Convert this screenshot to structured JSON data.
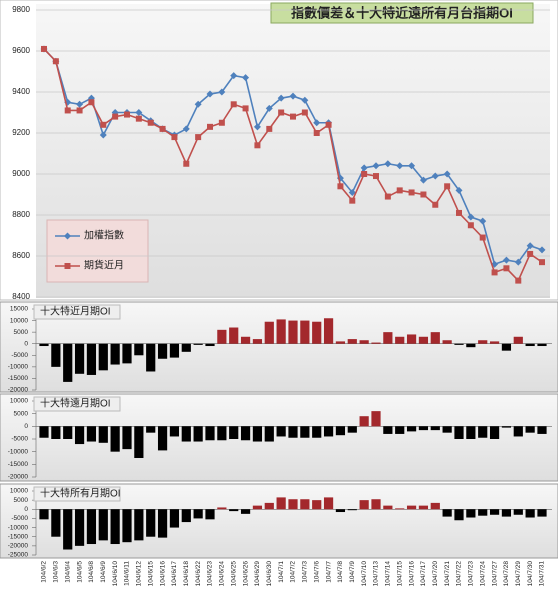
{
  "chart_data": [
    {
      "type": "line",
      "title": "指數價差＆十大特近遠所有月台指期OI",
      "ylim": [
        8400,
        9800
      ],
      "yticks": [
        8400,
        8600,
        8800,
        9000,
        9200,
        9400,
        9600,
        9800
      ],
      "grid": true,
      "series": [
        {
          "name": "加權指數",
          "color": "#4f81bd",
          "marker": "diamond",
          "values": [
            9610,
            9550,
            9350,
            9340,
            9370,
            9190,
            9300,
            9300,
            9300,
            9260,
            9220,
            9190,
            9220,
            9340,
            9390,
            9400,
            9480,
            9470,
            9230,
            9320,
            9370,
            9380,
            9360,
            9250,
            9250,
            8980,
            8910,
            9030,
            9040,
            9050,
            9040,
            9040,
            8970,
            8990,
            9000,
            8920,
            8790,
            8770,
            8560,
            8580,
            8570,
            8650,
            8630
          ]
        },
        {
          "name": "期貨近月",
          "color": "#c0504d",
          "marker": "square",
          "values": [
            9610,
            9550,
            9310,
            9310,
            9350,
            9240,
            9280,
            9290,
            9270,
            9250,
            9220,
            9180,
            9050,
            9180,
            9230,
            9250,
            9340,
            9320,
            9140,
            9220,
            9300,
            9280,
            9300,
            9200,
            9240,
            8940,
            8870,
            9000,
            8990,
            8890,
            8920,
            8910,
            8900,
            8850,
            8940,
            8810,
            8750,
            8690,
            8520,
            8540,
            8480,
            8610,
            8570
          ]
        }
      ]
    },
    {
      "type": "bar",
      "title": "十大特近月期OI",
      "ylim": [
        -20000,
        15000
      ],
      "yticks": [
        -20000,
        -15000,
        -10000,
        -5000,
        0,
        5000,
        10000,
        15000
      ],
      "positive_color": "#a3282c",
      "negative_color": "#000000",
      "values": [
        -1000,
        -10000,
        -16500,
        -13000,
        -13500,
        -11500,
        -9000,
        -8500,
        -5000,
        -12000,
        -6500,
        -6000,
        -3500,
        -500,
        -1000,
        6000,
        7000,
        3000,
        2000,
        9500,
        10500,
        10000,
        10000,
        9500,
        11000,
        1000,
        2000,
        1500,
        500,
        5000,
        3000,
        4000,
        3000,
        5000,
        1500,
        -500,
        -1500,
        1500,
        1000,
        -3000,
        3000,
        -1000,
        -1000
      ]
    },
    {
      "type": "bar",
      "title": "十大特遠月期OI",
      "ylim": [
        -20000,
        10000
      ],
      "yticks": [
        -20000,
        -15000,
        -10000,
        -5000,
        0,
        5000,
        10000
      ],
      "positive_color": "#a3282c",
      "negative_color": "#000000",
      "values": [
        -4500,
        -5000,
        -5000,
        -7000,
        -6000,
        -6500,
        -10000,
        -9000,
        -12500,
        -2500,
        -9500,
        -4000,
        -6000,
        -6000,
        -5500,
        -5500,
        -5000,
        -5500,
        -6000,
        -6000,
        -4000,
        -4500,
        -4500,
        -4500,
        -4000,
        -3500,
        -2500,
        4000,
        6000,
        -3000,
        -3000,
        -2000,
        -1500,
        -1500,
        -2500,
        -5000,
        -5000,
        -4500,
        -5000,
        -500,
        -4000,
        -2500,
        -3000
      ]
    },
    {
      "type": "bar",
      "title": "十大特所有月期OI",
      "ylim": [
        -25000,
        10000
      ],
      "yticks": [
        -25000,
        -20000,
        -15000,
        -10000,
        -5000,
        0,
        5000,
        10000
      ],
      "positive_color": "#a3282c",
      "negative_color": "#000000",
      "categories": [
        "104/6/2",
        "104/6/3",
        "104/6/4",
        "104/6/5",
        "104/6/8",
        "104/6/9",
        "104/6/10",
        "104/6/11",
        "104/6/12",
        "104/6/15",
        "104/6/16",
        "104/6/17",
        "104/6/18",
        "104/6/22",
        "104/6/23",
        "104/6/24",
        "104/6/25",
        "104/6/26",
        "104/6/29",
        "104/6/30",
        "104/7/1",
        "104/7/2",
        "104/7/3",
        "104/7/6",
        "104/7/7",
        "104/7/8",
        "104/7/9",
        "104/7/10",
        "104/7/13",
        "104/7/14",
        "104/7/15",
        "104/7/16",
        "104/7/17",
        "104/7/20",
        "104/7/21",
        "104/7/22",
        "104/7/23",
        "104/7/24",
        "104/7/27",
        "104/7/28",
        "104/7/29",
        "104/7/30",
        "104/7/31"
      ],
      "values": [
        -5500,
        -15000,
        -22000,
        -20000,
        -19000,
        -17000,
        -19000,
        -18000,
        -17000,
        -15000,
        -15500,
        -10000,
        -7000,
        -5000,
        -5500,
        1000,
        -1000,
        -2500,
        2000,
        3500,
        6500,
        5500,
        5500,
        5000,
        6500,
        -1500,
        -500,
        5000,
        5500,
        2000,
        500,
        2000,
        2000,
        3500,
        -4000,
        -6000,
        -4500,
        -3500,
        -3000,
        -4000,
        -3000,
        -4500,
        -4000
      ]
    }
  ]
}
